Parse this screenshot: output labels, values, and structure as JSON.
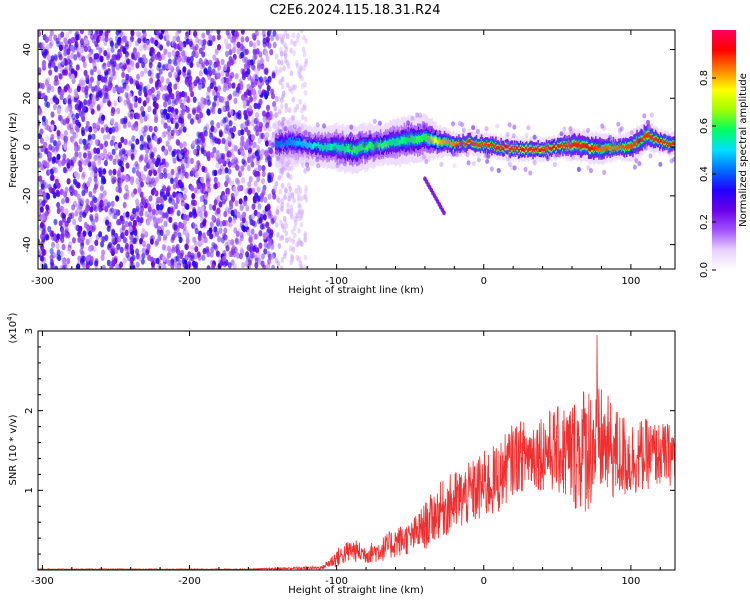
{
  "title": "C2E6.2024.115.18.31.R24",
  "chart_data": [
    {
      "type": "heatmap",
      "xlabel": "Height of straight line (km)",
      "ylabel": "Frequency (Hz)",
      "xlim": [
        -303,
        130
      ],
      "ylim": [
        -50,
        48
      ],
      "x_ticks": [
        -300,
        -200,
        -100,
        0,
        100
      ],
      "x_tick_labels": [
        "-300",
        "-200",
        "-100",
        "0",
        "100"
      ],
      "y_ticks": [
        -40,
        -20,
        0,
        20,
        40
      ],
      "y_tick_labels": [
        "-40",
        "-20",
        "0",
        "20",
        "40"
      ],
      "noise_region_x": [
        -303,
        -142
      ],
      "noise_fade_x": [
        -142,
        -120
      ],
      "ridge": {
        "x": [
          -142,
          -130,
          -120,
          -110,
          -100,
          -90,
          -80,
          -70,
          -60,
          -50,
          -40,
          -30,
          -20,
          -10,
          0,
          10,
          20,
          30,
          40,
          50,
          60,
          70,
          80,
          90,
          100,
          110,
          120,
          130
        ],
        "center_hz": [
          1,
          2,
          1,
          0,
          0,
          -1,
          0,
          1,
          2,
          3,
          4,
          2,
          1,
          2,
          1,
          0,
          -1,
          -1,
          -1,
          0,
          1,
          0,
          -1,
          0,
          0,
          5,
          2,
          1
        ],
        "half_width_hz": [
          6,
          6,
          5,
          5,
          6,
          6,
          6,
          5,
          6,
          6,
          6,
          4,
          3,
          3,
          3,
          3,
          3,
          3,
          3,
          3,
          4,
          4,
          4,
          3,
          4,
          4,
          3,
          3
        ],
        "peak_amplitude": [
          0.4,
          0.45,
          0.5,
          0.55,
          0.55,
          0.6,
          0.6,
          0.6,
          0.55,
          0.6,
          0.6,
          0.8,
          0.85,
          0.9,
          0.88,
          0.92,
          0.95,
          0.95,
          0.95,
          0.9,
          0.9,
          0.92,
          0.85,
          0.85,
          0.88,
          0.9,
          0.9,
          0.9
        ]
      },
      "streak": {
        "x": [
          -40,
          -27
        ],
        "y": [
          -13,
          -27
        ]
      },
      "colorbar": {
        "label": "Normalized spectral amplitude",
        "range": [
          0.0,
          1.0
        ],
        "ticks": [
          0.0,
          0.2,
          0.4,
          0.6,
          0.8
        ],
        "tick_labels": [
          "0.0",
          "0.2",
          "0.4",
          "0.6",
          "0.8"
        ],
        "colormap": [
          "#ffffff",
          "#e8d0ff",
          "#a050ff",
          "#6a00e8",
          "#2000ff",
          "#0070ff",
          "#00e0ff",
          "#00ff60",
          "#a0ff00",
          "#ffff00",
          "#ff8000",
          "#ff0000",
          "#ff0060"
        ]
      }
    },
    {
      "type": "line",
      "xlabel": "Height of straight line (km)",
      "ylabel": "SNR (10 * v/v)",
      "y_multiplier": "(x10",
      "y_multiplier_exp": "4",
      "y_multiplier_close": ")",
      "xlim": [
        -303,
        130
      ],
      "ylim": [
        0,
        3.0
      ],
      "x_ticks": [
        -300,
        -200,
        -100,
        0,
        100
      ],
      "x_tick_labels": [
        "-300",
        "-200",
        "-100",
        "0",
        "100"
      ],
      "y_ticks": [
        1,
        2,
        3
      ],
      "y_tick_labels": [
        "1",
        "2",
        "3"
      ],
      "series": [
        {
          "color": "#f03030",
          "envelope_x": [
            -303,
            -160,
            -110,
            -100,
            -90,
            -80,
            -70,
            -60,
            -50,
            -40,
            -30,
            -20,
            -10,
            0,
            10,
            20,
            30,
            40,
            50,
            60,
            70,
            80,
            90,
            100,
            110,
            120,
            130
          ],
          "envelope_mean": [
            0.01,
            0.01,
            0.03,
            0.15,
            0.25,
            0.2,
            0.25,
            0.35,
            0.4,
            0.55,
            0.75,
            0.85,
            0.95,
            1.05,
            1.15,
            1.4,
            1.45,
            1.5,
            1.5,
            1.45,
            1.55,
            1.6,
            1.45,
            1.4,
            1.45,
            1.45,
            1.45
          ],
          "envelope_amp": [
            0.005,
            0.005,
            0.02,
            0.12,
            0.15,
            0.12,
            0.15,
            0.2,
            0.2,
            0.3,
            0.35,
            0.4,
            0.4,
            0.45,
            0.45,
            0.45,
            0.45,
            0.5,
            0.55,
            0.7,
            0.85,
            0.7,
            0.6,
            0.5,
            0.45,
            0.4,
            0.4
          ],
          "peak_x": 77,
          "peak_y": 2.95
        }
      ]
    }
  ]
}
